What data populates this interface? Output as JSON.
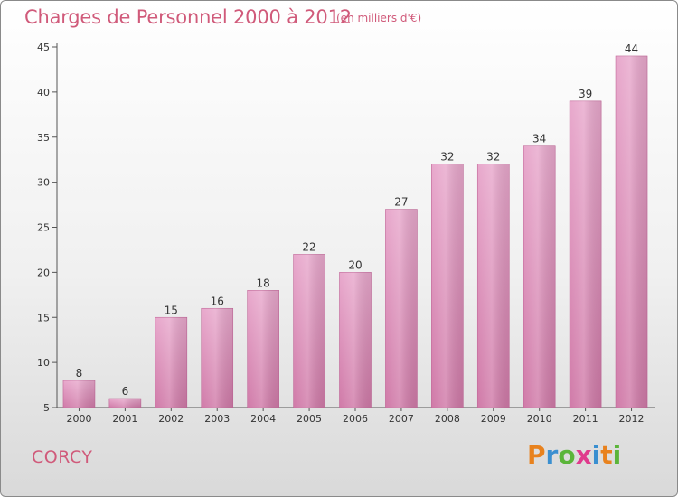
{
  "header": {
    "title": "Charges de Personnel 2000 à 2012",
    "subtitle": "(en milliers d'€)"
  },
  "footer": {
    "commune": "CORCY",
    "logo_letters": [
      "P",
      "r",
      "o",
      "x",
      "i",
      "t",
      "i"
    ],
    "logo_colors": [
      "#e8821e",
      "#3a8fd0",
      "#5bb53a",
      "#e03a8c",
      "#3a8fd0",
      "#e8821e",
      "#5bb53a"
    ]
  },
  "chart_data": {
    "type": "bar",
    "title": "Charges de Personnel 2000 à 2012",
    "subtitle": "(en milliers d'€)",
    "categories": [
      "2000",
      "2001",
      "2002",
      "2003",
      "2004",
      "2005",
      "2006",
      "2007",
      "2008",
      "2009",
      "2010",
      "2011",
      "2012"
    ],
    "values": [
      8,
      6,
      15,
      16,
      18,
      22,
      20,
      27,
      32,
      32,
      34,
      39,
      44
    ],
    "ylim": [
      5,
      45
    ],
    "yticks": [
      5,
      10,
      15,
      20,
      25,
      30,
      35,
      40,
      45
    ],
    "grid": false,
    "bar_color": "#d07aa8",
    "bar_color_light": "#e8a8cc"
  }
}
